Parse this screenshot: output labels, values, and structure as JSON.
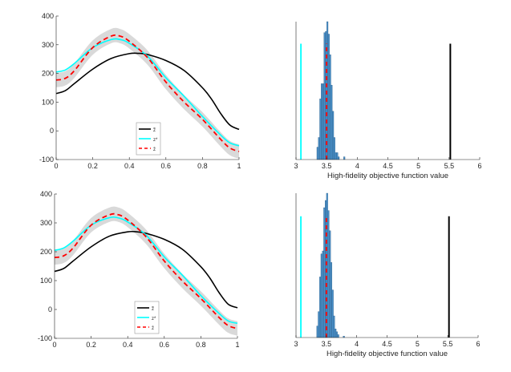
{
  "colors": {
    "black": "#000000",
    "cyan": "#00ffff",
    "red": "#ff0000",
    "band": "#d9d9d9",
    "hist": "#4a90c8"
  },
  "chart_data": [
    {
      "type": "line",
      "panel": "top-left",
      "xlim": [
        0,
        1
      ],
      "ylim": [
        -100,
        400
      ],
      "xticks": [
        "0",
        "0.2",
        "0.4",
        "0.6",
        "0.8",
        "1"
      ],
      "yticks": [
        "-100",
        "0",
        "100",
        "200",
        "300",
        "400"
      ],
      "legend": {
        "position": "bottom-center",
        "entries": [
          "z̃",
          "z*",
          "z̄"
        ]
      },
      "series": [
        {
          "name": "z̃",
          "style": "solid-black",
          "x": [
            0,
            0.05,
            0.1,
            0.2,
            0.3,
            0.4,
            0.45,
            0.5,
            0.6,
            0.7,
            0.8,
            0.85,
            0.9,
            0.95,
            1
          ],
          "y": [
            130,
            140,
            165,
            215,
            252,
            269,
            270,
            266,
            245,
            210,
            150,
            110,
            60,
            20,
            5
          ]
        },
        {
          "name": "z*",
          "style": "solid-cyan",
          "x": [
            0,
            0.05,
            0.1,
            0.2,
            0.3,
            0.35,
            0.4,
            0.5,
            0.6,
            0.7,
            0.8,
            0.9,
            0.95,
            1
          ],
          "y": [
            205,
            212,
            235,
            290,
            318,
            318,
            305,
            260,
            185,
            120,
            50,
            -15,
            -42,
            -52
          ]
        },
        {
          "name": "z̄",
          "style": "dashed-red",
          "x": [
            0,
            0.05,
            0.1,
            0.2,
            0.3,
            0.35,
            0.4,
            0.5,
            0.6,
            0.7,
            0.8,
            0.9,
            0.95,
            1
          ],
          "y": [
            177,
            183,
            210,
            290,
            330,
            330,
            312,
            255,
            170,
            100,
            40,
            -30,
            -60,
            -72
          ]
        }
      ],
      "band_halfwidth": 25
    },
    {
      "type": "histogram",
      "panel": "top-right",
      "xlim": [
        3,
        6
      ],
      "xlabel": "High-fidelity objective function value",
      "xticks": [
        "3",
        "3.5",
        "4",
        "4.5",
        "5",
        "5.5",
        "6"
      ],
      "bin_start": 3.34,
      "bin_width": 0.023,
      "counts": [
        9,
        16,
        44,
        55,
        55,
        92,
        93,
        100,
        91,
        76,
        54,
        35,
        16,
        5,
        5,
        2,
        0,
        0,
        0,
        2
      ],
      "vlines": [
        {
          "x": 3.08,
          "color": "cyan",
          "height": 84
        },
        {
          "x": 3.5,
          "color": "red-dashed",
          "height": 84
        },
        {
          "x": 5.52,
          "color": "black",
          "height": 84
        }
      ]
    },
    {
      "type": "line",
      "panel": "bottom-left",
      "xlim": [
        0,
        1
      ],
      "ylim": [
        -100,
        400
      ],
      "xticks": [
        "0",
        "0.2",
        "0.4",
        "0.6",
        "0.8",
        "1"
      ],
      "yticks": [
        "-100",
        "0",
        "100",
        "200",
        "300",
        "400"
      ],
      "legend": {
        "position": "bottom-center",
        "entries": [
          "z̃",
          "z*",
          "z̄"
        ]
      },
      "series": [
        {
          "name": "z̃",
          "style": "solid-black",
          "x": [
            0,
            0.05,
            0.1,
            0.2,
            0.3,
            0.4,
            0.45,
            0.5,
            0.6,
            0.7,
            0.8,
            0.85,
            0.9,
            0.95,
            1
          ],
          "y": [
            132,
            142,
            167,
            217,
            254,
            269,
            269,
            264,
            243,
            208,
            148,
            108,
            58,
            18,
            6
          ]
        },
        {
          "name": "z*",
          "style": "solid-cyan",
          "x": [
            0,
            0.05,
            0.1,
            0.2,
            0.3,
            0.35,
            0.4,
            0.5,
            0.6,
            0.7,
            0.8,
            0.9,
            0.95,
            1
          ],
          "y": [
            205,
            213,
            236,
            292,
            318,
            317,
            303,
            258,
            182,
            118,
            48,
            -14,
            -40,
            -48
          ]
        },
        {
          "name": "z̄",
          "style": "dashed-red",
          "x": [
            0,
            0.05,
            0.1,
            0.2,
            0.3,
            0.35,
            0.4,
            0.5,
            0.6,
            0.7,
            0.8,
            0.9,
            0.95,
            1
          ],
          "y": [
            180,
            186,
            212,
            292,
            328,
            328,
            310,
            252,
            168,
            98,
            38,
            -28,
            -56,
            -66
          ]
        }
      ],
      "band_halfwidth": 25
    },
    {
      "type": "histogram",
      "panel": "bottom-right",
      "xlim": [
        3,
        6
      ],
      "xlabel": "High-fidelity objective function value",
      "xticks": [
        "3",
        "3.5",
        "4",
        "4.5",
        "5",
        "5.5",
        "6"
      ],
      "bin_start": 3.34,
      "bin_width": 0.023,
      "counts": [
        8,
        18,
        42,
        58,
        60,
        90,
        95,
        100,
        88,
        74,
        52,
        33,
        15,
        6,
        4,
        2,
        0,
        0,
        0,
        1
      ],
      "vlines": [
        {
          "x": 3.08,
          "color": "cyan",
          "height": 84
        },
        {
          "x": 3.5,
          "color": "red-dashed",
          "height": 84
        },
        {
          "x": 5.52,
          "color": "black",
          "height": 84
        }
      ]
    }
  ]
}
